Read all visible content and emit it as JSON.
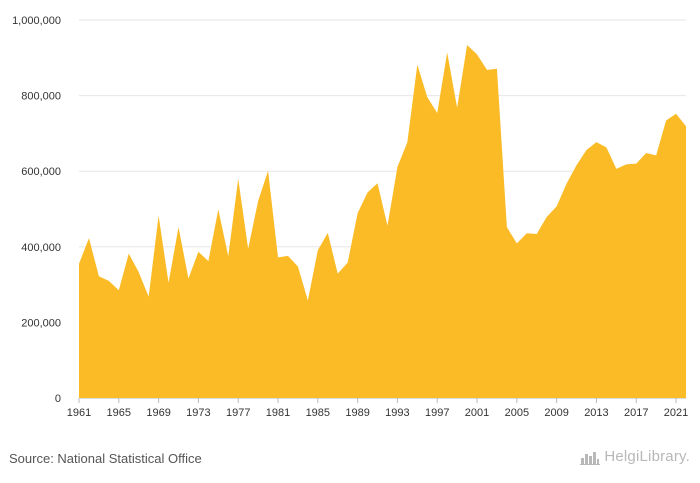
{
  "chart_data": {
    "type": "area",
    "title": "",
    "xlabel": "",
    "ylabel": "",
    "ylim": [
      0,
      1000000
    ],
    "y_ticks": [
      "0",
      "200,000",
      "400,000",
      "600,000",
      "800,000",
      "1,000,000"
    ],
    "y_tick_values": [
      0,
      200000,
      400000,
      600000,
      800000,
      1000000
    ],
    "x_ticks": [
      "1961",
      "1965",
      "1969",
      "1973",
      "1977",
      "1981",
      "1985",
      "1989",
      "1993",
      "1997",
      "2001",
      "2005",
      "2009",
      "2013",
      "2017",
      "2021"
    ],
    "x": [
      1961,
      1962,
      1963,
      1964,
      1965,
      1966,
      1967,
      1968,
      1969,
      1970,
      1971,
      1972,
      1973,
      1974,
      1975,
      1976,
      1977,
      1978,
      1979,
      1980,
      1981,
      1982,
      1983,
      1984,
      1985,
      1986,
      1987,
      1988,
      1989,
      1990,
      1991,
      1992,
      1993,
      1994,
      1995,
      1996,
      1997,
      1998,
      1999,
      2000,
      2001,
      2002,
      2003,
      2004,
      2005,
      2006,
      2007,
      2008,
      2009,
      2010,
      2011,
      2012,
      2013,
      2014,
      2015,
      2016,
      2017,
      2018,
      2019,
      2020,
      2021,
      2022
    ],
    "values": [
      355000,
      423000,
      322000,
      310000,
      285000,
      382000,
      333000,
      268000,
      482000,
      305000,
      452000,
      316000,
      387000,
      362000,
      499000,
      375000,
      580000,
      395000,
      521000,
      601000,
      372000,
      376000,
      348000,
      258000,
      391000,
      437000,
      329000,
      358000,
      489000,
      544000,
      568000,
      456000,
      611000,
      677000,
      882000,
      796000,
      754000,
      914000,
      768000,
      934000,
      909000,
      868000,
      871000,
      452000,
      409000,
      436000,
      434000,
      479000,
      507000,
      567000,
      616000,
      656000,
      677000,
      663000,
      606000,
      618000,
      620000,
      648000,
      642000,
      734000,
      752000,
      719000
    ],
    "grid": true,
    "color": "#FABB26",
    "legend": "none"
  },
  "footer": {
    "source": "Source: National Statistical Office",
    "brand": "HelgiLibrary.",
    "brand_icon": "city-skyline-icon"
  }
}
